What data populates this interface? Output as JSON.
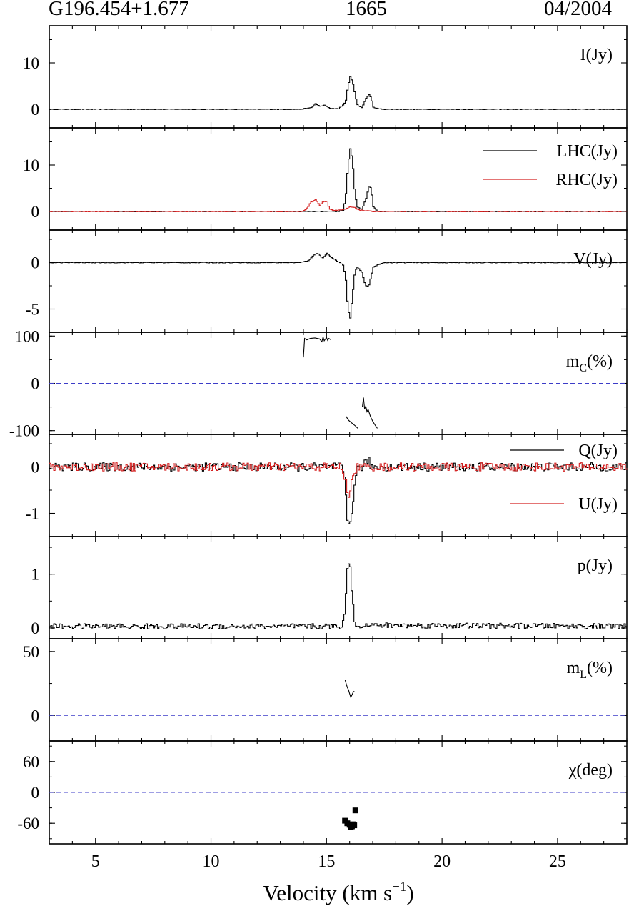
{
  "header": {
    "source": "G196.454+1.677",
    "frequency": "1665",
    "date": "04/2004"
  },
  "xaxis": {
    "label": "Velocity (km s",
    "label_sup": "−1",
    "label_close": ")",
    "range": [
      3,
      28
    ],
    "ticks": [
      5,
      10,
      15,
      20,
      25
    ]
  },
  "colors": {
    "black_trace": "#000000",
    "red_trace": "#d42020",
    "zero_line": "#3c3cc8"
  },
  "chart_data": [
    {
      "type": "line",
      "id": "I",
      "label": "I(Jy)",
      "ylim": [
        -4,
        18
      ],
      "yticks": [
        0,
        10
      ],
      "step": true,
      "series": [
        {
          "color": "black",
          "x": [
            3,
            13.8,
            14.3,
            14.5,
            14.7,
            14.9,
            15.1,
            15.5,
            15.8,
            15.9,
            16.0,
            16.1,
            16.2,
            16.3,
            16.5,
            16.7,
            16.8,
            16.9,
            17.0,
            17.2,
            17.5,
            28
          ],
          "y": [
            0,
            0,
            0.3,
            1.2,
            0.6,
            0.9,
            0.2,
            0.1,
            1.5,
            5,
            7,
            6,
            3.5,
            1,
            0.3,
            2.5,
            3.2,
            2.5,
            0.5,
            0.1,
            0,
            0
          ]
        }
      ]
    },
    {
      "type": "line",
      "id": "circ",
      "ylim": [
        -4,
        18
      ],
      "yticks": [
        0,
        10
      ],
      "step": true,
      "legend": [
        {
          "text": "LHC(Jy)",
          "color": "black"
        },
        {
          "text": "RHC(Jy)",
          "color": "red"
        }
      ],
      "series": [
        {
          "name": "LHC(Jy)",
          "color": "black",
          "x": [
            3,
            15.5,
            15.7,
            15.8,
            15.9,
            16.0,
            16.1,
            16.2,
            16.3,
            16.5,
            16.7,
            16.8,
            16.9,
            17.0,
            17.2,
            28
          ],
          "y": [
            0,
            0,
            0.3,
            3,
            10,
            13.5,
            11,
            4,
            1,
            0.3,
            3,
            5.5,
            5,
            1,
            0,
            0
          ]
        },
        {
          "name": "RHC(Jy)",
          "color": "red",
          "x": [
            3,
            13.9,
            14.1,
            14.3,
            14.5,
            14.7,
            14.8,
            15.0,
            15.1,
            15.3,
            15.6,
            15.8,
            16.0,
            16.2,
            16.4,
            17.0,
            28
          ],
          "y": [
            0,
            0,
            0.5,
            2,
            2.6,
            1.2,
            2.1,
            2.2,
            0.5,
            0.2,
            0.3,
            0.5,
            1,
            0.8,
            0.3,
            0,
            0
          ]
        }
      ]
    },
    {
      "type": "line",
      "id": "V",
      "label": "V(Jy)",
      "ylim": [
        -7.5,
        3.5
      ],
      "yticks": [
        0,
        -5
      ],
      "step": true,
      "series": [
        {
          "color": "black",
          "x": [
            3,
            13.8,
            14.2,
            14.4,
            14.6,
            14.8,
            15.0,
            15.2,
            15.5,
            15.7,
            15.8,
            15.9,
            16.0,
            16.1,
            16.2,
            16.3,
            16.5,
            16.6,
            16.7,
            16.8,
            16.9,
            17.0,
            17.2,
            17.5,
            28
          ],
          "y": [
            0,
            0,
            0.2,
            0.8,
            1.0,
            0.5,
            1.0,
            0.5,
            0.1,
            -0.3,
            -1.5,
            -5,
            -6,
            -3.5,
            -1,
            -0.5,
            -1,
            -2,
            -2.6,
            -2.5,
            -1.5,
            -0.5,
            -0.2,
            0,
            0
          ]
        }
      ]
    },
    {
      "type": "line",
      "id": "mc",
      "label": "m",
      "label_sub": "C",
      "label_tail": "(%)",
      "ylim": [
        -108,
        108
      ],
      "yticks": [
        100,
        0,
        -100
      ],
      "zero_line": true,
      "step": false,
      "series": [
        {
          "color": "black",
          "x": [
            14.0,
            14.05,
            14.15,
            14.3,
            14.5,
            14.7,
            14.8,
            14.85,
            14.9,
            15.0,
            15.05,
            15.1,
            15.2
          ],
          "y": [
            55,
            95,
            92,
            95,
            96,
            94,
            88,
            98,
            90,
            97,
            91,
            95,
            92
          ]
        },
        {
          "color": "black",
          "x": [
            15.85,
            15.95,
            16.05,
            16.15,
            16.25,
            16.35
          ],
          "y": [
            -70,
            -78,
            -82,
            -86,
            -90,
            -95
          ]
        },
        {
          "color": "black",
          "x": [
            16.55,
            16.6,
            16.65,
            16.7,
            16.75,
            16.8,
            16.9,
            17.0,
            17.1,
            17.2
          ],
          "y": [
            -50,
            -30,
            -55,
            -48,
            -60,
            -55,
            -70,
            -80,
            -88,
            -95
          ]
        }
      ]
    },
    {
      "type": "line",
      "id": "QU",
      "ylim": [
        -1.5,
        0.7
      ],
      "yticks": [
        0,
        -1
      ],
      "step": true,
      "noise": 0.09,
      "legend": [
        {
          "text": "Q(Jy)",
          "color": "black"
        },
        {
          "text": "U(Jy)",
          "color": "red"
        }
      ],
      "series": [
        {
          "name": "Q(Jy)",
          "color": "black",
          "x": [
            3,
            15.6,
            15.7,
            15.8,
            15.85,
            15.9,
            16.0,
            16.1,
            16.2,
            16.3,
            16.5,
            16.7,
            16.8,
            16.9,
            17.0,
            28
          ],
          "y": [
            0,
            0,
            -0.1,
            -0.5,
            -1.0,
            -1.25,
            -1.2,
            -0.8,
            -0.3,
            -0.05,
            0,
            0.1,
            0.15,
            0,
            0,
            0
          ]
        },
        {
          "name": "U(Jy)",
          "color": "red",
          "x": [
            3,
            15.6,
            15.7,
            15.8,
            15.9,
            16.0,
            16.1,
            16.2,
            16.3,
            16.5,
            17.0,
            28
          ],
          "y": [
            0,
            0,
            -0.1,
            -0.3,
            -0.65,
            -0.45,
            -0.3,
            -0.1,
            0,
            0,
            0,
            0
          ]
        }
      ]
    },
    {
      "type": "line",
      "id": "p",
      "label": "p(Jy)",
      "ylim": [
        -0.2,
        1.7
      ],
      "yticks": [
        1,
        0
      ],
      "step": true,
      "noise": 0.05,
      "series": [
        {
          "color": "black",
          "x": [
            3,
            15.6,
            15.7,
            15.8,
            15.9,
            16.0,
            16.1,
            16.2,
            16.3,
            16.5,
            28
          ],
          "y": [
            0.03,
            0.03,
            0.1,
            0.5,
            1.32,
            1.1,
            0.5,
            0.1,
            0.03,
            0.05,
            0.03
          ]
        }
      ]
    },
    {
      "type": "line",
      "id": "mL",
      "label": "m",
      "label_sub": "L",
      "label_tail": "(%)",
      "ylim": [
        -20,
        60
      ],
      "yticks": [
        50,
        0
      ],
      "zero_line": true,
      "step": false,
      "series": [
        {
          "color": "black",
          "x": [
            15.8,
            15.85,
            15.9,
            15.95,
            16.0,
            16.05,
            16.1,
            16.15,
            16.2
          ],
          "y": [
            28,
            25,
            22,
            20,
            17,
            14,
            16,
            18,
            19
          ]
        }
      ]
    },
    {
      "type": "scatter",
      "id": "chi",
      "label": "χ(deg)",
      "ylim": [
        -100,
        100
      ],
      "yticks": [
        60,
        0,
        -60
      ],
      "zero_line": true,
      "step": false,
      "series": [
        {
          "color": "black",
          "x": [
            15.8,
            15.9,
            16.0,
            16.05,
            16.1,
            16.15,
            16.2,
            16.25
          ],
          "y": [
            -55,
            -60,
            -63,
            -68,
            -66,
            -62,
            -64,
            -35
          ]
        }
      ]
    }
  ]
}
